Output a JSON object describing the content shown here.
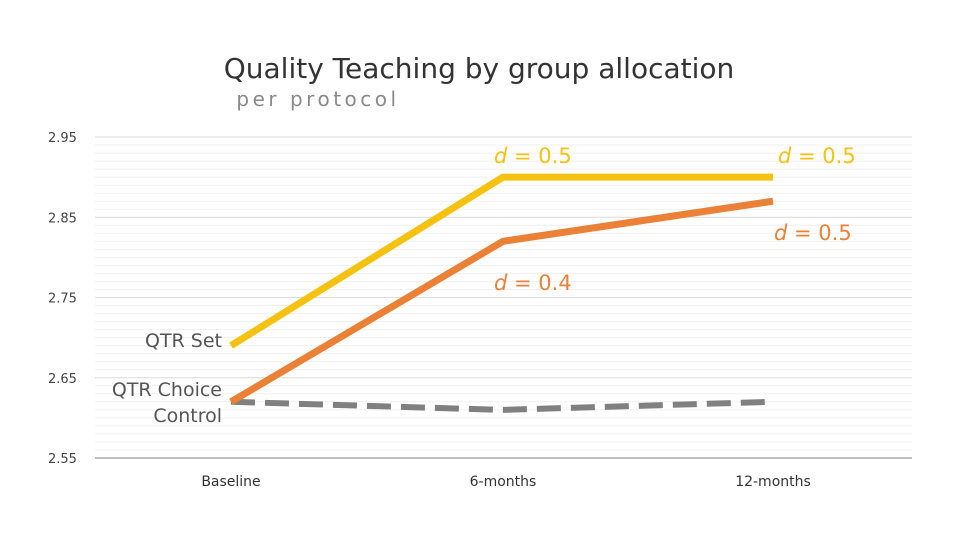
{
  "chart_data": {
    "type": "line",
    "title": "Quality Teaching by group allocation",
    "subtitle": "per protocol",
    "categories": [
      "Baseline",
      "6-months",
      "12-months"
    ],
    "ylim": [
      2.55,
      2.95
    ],
    "yticks": [
      2.55,
      2.65,
      2.75,
      2.85,
      2.95
    ],
    "ytick_labels": [
      "2.55",
      "2.65",
      "2.75",
      "2.85",
      "2.95"
    ],
    "xlabel": "",
    "ylabel": "",
    "grid": true,
    "series": [
      {
        "name": "QTR Set",
        "values": [
          2.69,
          2.9,
          2.9
        ],
        "color": "#F5C211",
        "style": "solid",
        "annotations": [
          null,
          "d = 0.5",
          "d = 0.5"
        ]
      },
      {
        "name": "QTR Choice",
        "values": [
          2.62,
          2.82,
          2.87
        ],
        "color": "#EA8136",
        "style": "solid",
        "annotations": [
          null,
          "d = 0.4",
          "d = 0.5"
        ]
      },
      {
        "name": "Control",
        "values": [
          2.62,
          2.61,
          2.62
        ],
        "color": "#808080",
        "style": "dashed",
        "annotations": [
          null,
          null,
          null
        ]
      }
    ]
  }
}
